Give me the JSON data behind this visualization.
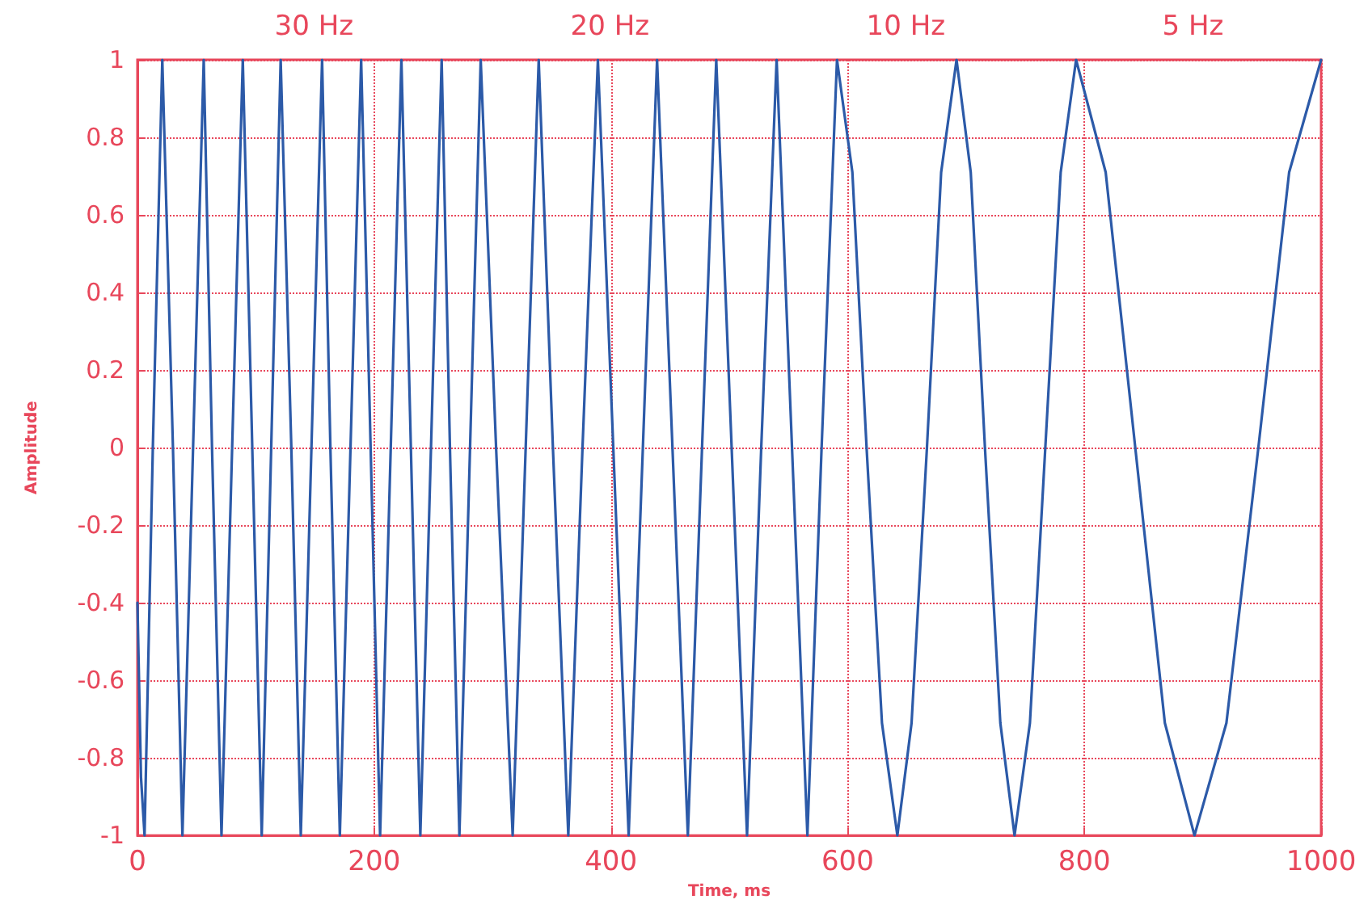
{
  "chart_data": {
    "type": "line",
    "xlabel": "Time, ms",
    "ylabel": "Amplitude",
    "annotations": [
      "30 Hz",
      "20 Hz",
      "10 Hz",
      "5 Hz"
    ],
    "x": [
      0,
      3,
      6,
      13,
      21,
      30,
      38,
      47,
      56,
      63,
      71,
      80,
      89,
      97,
      105,
      113,
      121,
      130,
      138,
      147,
      156,
      163,
      171,
      180,
      189,
      197,
      205,
      214,
      223,
      231,
      239,
      248,
      257,
      264,
      272,
      281,
      290,
      303,
      317,
      328,
      339,
      351,
      364,
      376,
      389,
      402,
      415,
      427,
      439,
      452,
      465,
      477,
      489,
      502,
      515,
      527,
      540,
      553,
      566,
      578,
      591,
      604,
      616,
      629,
      642,
      654,
      667,
      679,
      692,
      704,
      716,
      729,
      741,
      754,
      767,
      780,
      793,
      818,
      843,
      868,
      893,
      920,
      947,
      973,
      1000
    ],
    "series": [
      {
        "color": "#2c5aa8",
        "values": [
          -0.4,
          -0.85,
          -1,
          0,
          1,
          0,
          -1,
          0,
          1,
          0,
          -1,
          0,
          1,
          0,
          -1,
          0,
          1,
          0,
          -1,
          0,
          1,
          0,
          -1,
          0,
          1,
          0,
          -1,
          0,
          1,
          0,
          -1,
          0,
          1,
          0,
          -1,
          0,
          1,
          0,
          -1,
          0,
          1,
          0,
          -1,
          0,
          1,
          0,
          -1,
          0,
          1,
          0,
          -1,
          0,
          1,
          0,
          -1,
          0,
          1,
          0,
          -1,
          0,
          1,
          0.71,
          0,
          -0.71,
          -1,
          -0.71,
          0,
          0.71,
          1,
          0.71,
          0,
          -0.71,
          -1,
          -0.71,
          0,
          0.71,
          1,
          0.71,
          0,
          -0.71,
          -1,
          -0.71,
          0,
          0.71,
          1
        ]
      }
    ],
    "xlim": [
      0,
      1000
    ],
    "xticks": [
      0,
      200,
      400,
      600,
      800,
      1000
    ],
    "ylim": [
      -1,
      1
    ],
    "yticks": [
      -1,
      -0.8,
      -0.6,
      -0.4,
      -0.2,
      0,
      0.2,
      0.4,
      0.6,
      0.8,
      1
    ],
    "grid": true,
    "marker": "none",
    "line_style": "solid"
  }
}
